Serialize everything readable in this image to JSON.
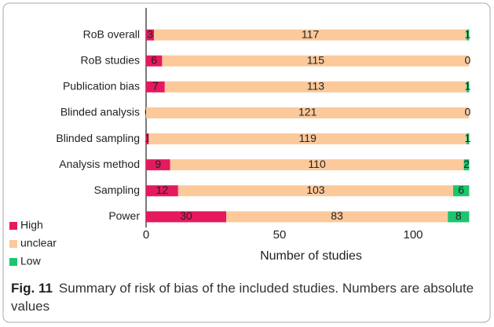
{
  "chart_data": {
    "type": "stacked-bar-horizontal",
    "categories": [
      "RoB overall",
      "RoB studies",
      "Publication bias",
      "Blinded analysis",
      "Blinded sampling",
      "Analysis method",
      "Sampling",
      "Power"
    ],
    "series": [
      {
        "name": "High",
        "color": "#e5195f",
        "values": [
          3,
          6,
          7,
          0,
          1,
          9,
          12,
          30
        ]
      },
      {
        "name": "unclear",
        "color": "#fbc99a",
        "values": [
          117,
          115,
          113,
          121,
          119,
          110,
          103,
          83
        ]
      },
      {
        "name": "Low",
        "color": "#1ec46e",
        "values": [
          1,
          0,
          1,
          0,
          1,
          2,
          6,
          8
        ]
      }
    ],
    "xlabel": "Number of studies",
    "xlim": [
      0,
      125
    ],
    "xticks": [
      0,
      50,
      100
    ],
    "grid": false,
    "legend": "lower left",
    "caption": {
      "label": "Fig. 11",
      "text": "Summary of risk of bias of the included studies. Numbers are absolute values"
    }
  }
}
